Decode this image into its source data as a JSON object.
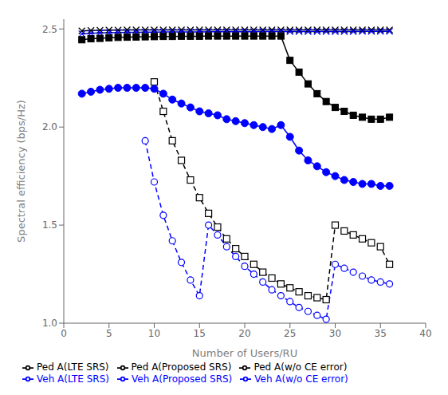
{
  "chart_data": {
    "type": "line",
    "title": "",
    "xlabel": "Number of Users/RU",
    "ylabel": "Spectral efficiency (bps/Hz)",
    "xlim": [
      0,
      40
    ],
    "ylim": [
      1.0,
      2.55
    ],
    "xticks": [
      0,
      5,
      10,
      15,
      20,
      25,
      30,
      35,
      40
    ],
    "yticks": [
      {
        "value": 1.0,
        "label": "1.0"
      },
      1.5,
      {
        "value": 2.0,
        "label": "2.0"
      },
      2.5
    ],
    "grid": false,
    "legend": "lower left",
    "series": [
      {
        "name": "Ped A(w/o CE error)",
        "color": "black",
        "line_style": "solid",
        "marker": "x",
        "x": [
          2,
          3,
          4,
          5,
          6,
          7,
          8,
          9,
          10,
          11,
          12,
          13,
          14,
          15,
          16,
          17,
          18,
          19,
          20,
          21,
          22,
          23,
          24,
          25,
          26,
          27,
          28,
          29,
          30,
          31,
          32,
          33,
          34,
          35,
          36
        ],
        "values": [
          2.49,
          2.492,
          2.493,
          2.494,
          2.494,
          2.495,
          2.495,
          2.495,
          2.495,
          2.495,
          2.495,
          2.495,
          2.495,
          2.495,
          2.495,
          2.495,
          2.495,
          2.495,
          2.495,
          2.495,
          2.495,
          2.495,
          2.495,
          2.495,
          2.495,
          2.495,
          2.495,
          2.495,
          2.495,
          2.495,
          2.495,
          2.495,
          2.495,
          2.495,
          2.495
        ]
      },
      {
        "name": "Veh A(w/o CE error)",
        "color": "blue",
        "line_style": "solid",
        "marker": "x",
        "x": [
          2,
          3,
          4,
          5,
          6,
          7,
          8,
          9,
          10,
          11,
          12,
          13,
          14,
          15,
          16,
          17,
          18,
          19,
          20,
          21,
          22,
          23,
          24,
          25,
          26,
          27,
          28,
          29,
          30,
          31,
          32,
          33,
          34,
          35,
          36
        ],
        "values": [
          2.475,
          2.478,
          2.48,
          2.481,
          2.482,
          2.483,
          2.483,
          2.484,
          2.484,
          2.485,
          2.485,
          2.485,
          2.485,
          2.485,
          2.486,
          2.486,
          2.486,
          2.486,
          2.486,
          2.486,
          2.487,
          2.487,
          2.487,
          2.487,
          2.487,
          2.487,
          2.487,
          2.487,
          2.487,
          2.487,
          2.487,
          2.488,
          2.488,
          2.488,
          2.488
        ]
      },
      {
        "name": "Ped A(LTE SRS)",
        "color": "black",
        "line_style": "dashed",
        "marker": "open_square",
        "x": [
          10,
          11,
          12,
          13,
          14,
          15,
          16,
          17,
          18,
          19,
          20,
          21,
          22,
          23,
          24,
          25,
          26,
          27,
          28,
          29,
          30,
          31,
          32,
          33,
          34,
          35,
          36
        ],
        "values": [
          2.23,
          2.08,
          1.93,
          1.83,
          1.73,
          1.64,
          1.56,
          1.49,
          1.43,
          1.38,
          1.34,
          1.3,
          1.26,
          1.23,
          1.2,
          1.18,
          1.16,
          1.14,
          1.13,
          1.12,
          1.5,
          1.47,
          1.45,
          1.43,
          1.41,
          1.39,
          1.3
        ]
      },
      {
        "name": "Veh A(LTE SRS)",
        "color": "blue",
        "line_style": "dashed",
        "marker": "open_circle",
        "x": [
          9,
          10,
          11,
          12,
          13,
          14,
          15,
          16,
          17,
          18,
          19,
          20,
          21,
          22,
          23,
          24,
          25,
          26,
          27,
          28,
          29,
          30,
          31,
          32,
          33,
          34,
          35,
          36
        ],
        "values": [
          1.93,
          1.72,
          1.55,
          1.42,
          1.31,
          1.22,
          1.14,
          1.5,
          1.45,
          1.39,
          1.34,
          1.29,
          1.25,
          1.21,
          1.17,
          1.14,
          1.11,
          1.08,
          1.06,
          1.04,
          1.02,
          1.3,
          1.28,
          1.26,
          1.24,
          1.22,
          1.21,
          1.2
        ]
      },
      {
        "name": "Ped A(Proposed SRS)",
        "color": "black",
        "line_style": "solid",
        "marker": "square",
        "x": [
          2,
          3,
          4,
          5,
          6,
          7,
          8,
          9,
          10,
          11,
          12,
          13,
          14,
          15,
          16,
          17,
          18,
          19,
          20,
          21,
          22,
          23,
          24,
          25,
          26,
          27,
          28,
          29,
          30,
          31,
          32,
          33,
          34,
          35,
          36
        ],
        "values": [
          2.445,
          2.45,
          2.452,
          2.455,
          2.457,
          2.458,
          2.459,
          2.46,
          2.461,
          2.462,
          2.462,
          2.463,
          2.463,
          2.463,
          2.464,
          2.464,
          2.464,
          2.464,
          2.464,
          2.464,
          2.464,
          2.464,
          2.464,
          2.34,
          2.28,
          2.22,
          2.17,
          2.13,
          2.1,
          2.08,
          2.06,
          2.05,
          2.04,
          2.04,
          2.05
        ]
      },
      {
        "name": "Veh A(Proposed SRS)",
        "color": "blue",
        "line_style": "solid",
        "marker": "circle",
        "x": [
          2,
          3,
          4,
          5,
          6,
          7,
          8,
          9,
          10,
          11,
          12,
          13,
          14,
          15,
          16,
          17,
          18,
          19,
          20,
          21,
          22,
          23,
          24,
          25,
          26,
          27,
          28,
          29,
          30,
          31,
          32,
          33,
          34,
          35,
          36
        ],
        "values": [
          2.17,
          2.18,
          2.19,
          2.195,
          2.2,
          2.2,
          2.2,
          2.2,
          2.195,
          2.17,
          2.14,
          2.12,
          2.1,
          2.08,
          2.07,
          2.06,
          2.04,
          2.03,
          2.02,
          2.01,
          2.0,
          1.99,
          2.01,
          1.95,
          1.88,
          1.83,
          1.8,
          1.77,
          1.75,
          1.73,
          1.72,
          1.71,
          1.71,
          1.7,
          1.7
        ]
      }
    ]
  }
}
